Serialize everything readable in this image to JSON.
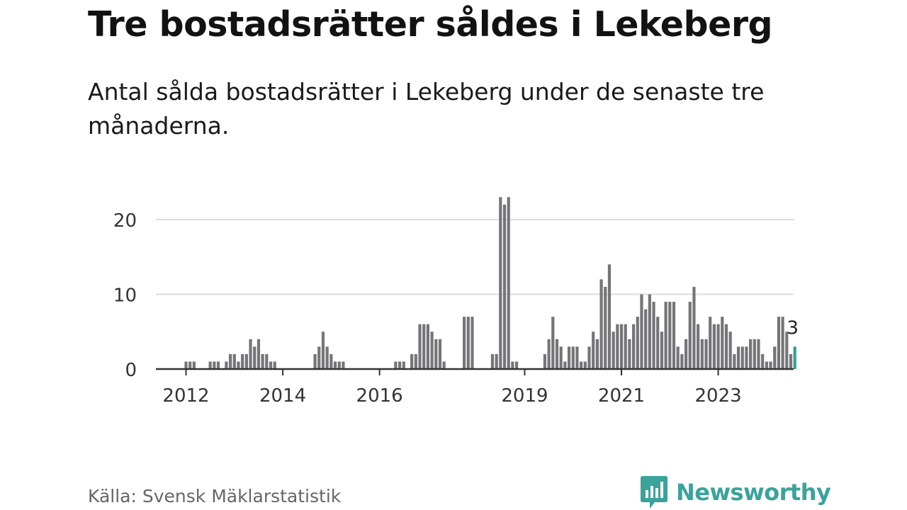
{
  "title": "Tre bostadsrätter såldes i Lekeberg",
  "subtitle": "Antal sålda bostadsrätter i Lekeberg under de senaste tre månaderna.",
  "source": "Källa: Svensk Mäklarstatistik",
  "brand": "Newsworthy",
  "colors": {
    "bar": "#757579",
    "highlight": "#2aa198",
    "grid": "#dddddd",
    "axis": "#333333",
    "brand": "#3aa39a"
  },
  "chart_data": {
    "type": "bar",
    "title": "Tre bostadsrätter såldes i Lekeberg",
    "xlabel": "",
    "ylabel": "",
    "x_start": "2011-12",
    "x_ticks": [
      {
        "label": "2012",
        "x": "2012-01"
      },
      {
        "label": "2014",
        "x": "2014-01"
      },
      {
        "label": "2016",
        "x": "2016-01"
      },
      {
        "label": "2019",
        "x": "2019-01"
      },
      {
        "label": "2021",
        "x": "2021-01"
      },
      {
        "label": "2023",
        "x": "2023-01"
      }
    ],
    "y_ticks": [
      0,
      10,
      20
    ],
    "ylim": [
      0,
      23
    ],
    "grid": true,
    "values": [
      0,
      1,
      1,
      1,
      0,
      0,
      0,
      1,
      1,
      1,
      0,
      1,
      2,
      2,
      1,
      2,
      2,
      4,
      3,
      4,
      2,
      2,
      1,
      1,
      0,
      0,
      0,
      0,
      0,
      0,
      0,
      0,
      0,
      2,
      3,
      5,
      3,
      2,
      1,
      1,
      1,
      0,
      0,
      0,
      0,
      0,
      0,
      0,
      0,
      0,
      0,
      0,
      0,
      1,
      1,
      1,
      0,
      2,
      2,
      6,
      6,
      6,
      5,
      4,
      4,
      1,
      0,
      0,
      0,
      0,
      7,
      7,
      7,
      0,
      0,
      0,
      0,
      2,
      2,
      23,
      22,
      23,
      1,
      1,
      0,
      0,
      0,
      0,
      0,
      0,
      2,
      4,
      7,
      4,
      3,
      1,
      3,
      3,
      3,
      1,
      1,
      3,
      5,
      4,
      12,
      11,
      14,
      5,
      6,
      6,
      6,
      4,
      6,
      7,
      10,
      8,
      10,
      9,
      7,
      5,
      9,
      9,
      9,
      3,
      2,
      4,
      9,
      11,
      6,
      4,
      4,
      7,
      6,
      6,
      7,
      6,
      5,
      2,
      3,
      3,
      3,
      4,
      4,
      4,
      2,
      1,
      1,
      3,
      7,
      7,
      5,
      2,
      3
    ],
    "highlight_last": 1,
    "annotation": {
      "text": "3",
      "value": 3
    }
  }
}
